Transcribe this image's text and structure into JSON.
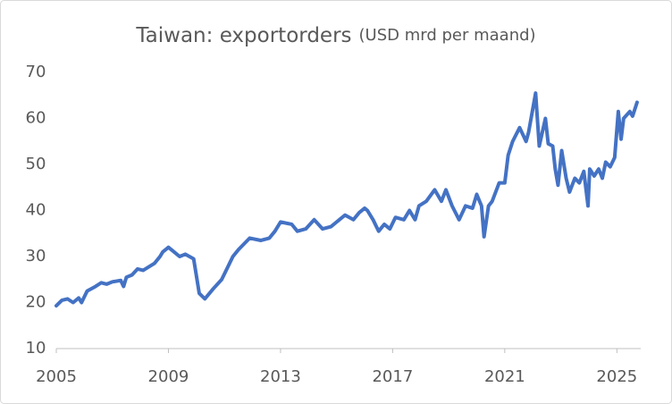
{
  "chart_data": {
    "type": "line",
    "title": "Taiwan: exportorders",
    "subtitle": "(USD mrd per maand)",
    "xlim": [
      2005,
      2025.85
    ],
    "xticks": [
      2005,
      2009,
      2013,
      2017,
      2021,
      2025
    ],
    "ylim": [
      10,
      70
    ],
    "yticks": [
      10,
      20,
      30,
      40,
      50,
      60,
      70
    ],
    "grid": false,
    "series": [
      {
        "name": "Taiwan exportorders",
        "color": "#4472c4",
        "x": [
          2005.0,
          2005.2,
          2005.4,
          2005.6,
          2005.8,
          2005.9,
          2006.1,
          2006.4,
          2006.6,
          2006.8,
          2007.0,
          2007.3,
          2007.4,
          2007.5,
          2007.7,
          2007.9,
          2008.1,
          2008.5,
          2008.7,
          2008.8,
          2008.9,
          2009.0,
          2009.2,
          2009.4,
          2009.6,
          2009.9,
          2010.1,
          2010.3,
          2010.6,
          2010.9,
          2011.1,
          2011.3,
          2011.5,
          2011.9,
          2012.3,
          2012.6,
          2012.8,
          2013.0,
          2013.4,
          2013.6,
          2013.9,
          2014.2,
          2014.5,
          2014.8,
          2015.0,
          2015.3,
          2015.6,
          2015.8,
          2016.0,
          2016.1,
          2016.3,
          2016.5,
          2016.7,
          2016.9,
          2017.1,
          2017.4,
          2017.6,
          2017.8,
          2017.94,
          2018.2,
          2018.5,
          2018.74,
          2018.9,
          2019.12,
          2019.37,
          2019.6,
          2019.85,
          2020.0,
          2020.17,
          2020.26,
          2020.42,
          2020.55,
          2020.8,
          2021.0,
          2021.12,
          2021.28,
          2021.53,
          2021.76,
          2021.85,
          2022.1,
          2022.23,
          2022.45,
          2022.55,
          2022.71,
          2022.8,
          2022.9,
          2023.03,
          2023.19,
          2023.31,
          2023.5,
          2023.66,
          2023.82,
          2023.97,
          2024.03,
          2024.19,
          2024.35,
          2024.48,
          2024.6,
          2024.76,
          2024.92,
          2025.05,
          2025.15,
          2025.24,
          2025.46,
          2025.56,
          2025.72
        ],
        "values": [
          19.3,
          20.5,
          20.8,
          20.0,
          21.0,
          20.0,
          22.5,
          23.5,
          24.3,
          24.0,
          24.5,
          24.8,
          23.5,
          25.5,
          26.0,
          27.3,
          27.0,
          28.5,
          30.0,
          31.0,
          31.5,
          32.0,
          31.0,
          30.0,
          30.5,
          29.5,
          22.0,
          20.8,
          23.0,
          25.0,
          27.5,
          30.0,
          31.5,
          34.0,
          33.5,
          34.0,
          35.5,
          37.5,
          37.0,
          35.5,
          36.0,
          38.0,
          36.0,
          36.5,
          37.5,
          39.0,
          38.0,
          39.5,
          40.5,
          40.0,
          38.0,
          35.5,
          37.0,
          36.0,
          38.5,
          38.0,
          40.0,
          38.0,
          41.0,
          42.0,
          44.5,
          42.0,
          44.5,
          41.0,
          38.0,
          41.0,
          40.5,
          43.5,
          41.0,
          34.3,
          41.0,
          42.0,
          46.0,
          46.0,
          52.0,
          55.0,
          58.0,
          55.0,
          57.0,
          65.5,
          54.0,
          60.0,
          54.5,
          54.0,
          49.0,
          45.5,
          53.0,
          47.0,
          44.0,
          47.0,
          46.0,
          48.5,
          41.0,
          49.0,
          47.5,
          49.0,
          47.0,
          50.5,
          49.5,
          51.5,
          61.5,
          55.5,
          60.0,
          61.5,
          60.5,
          63.5
        ]
      }
    ]
  }
}
